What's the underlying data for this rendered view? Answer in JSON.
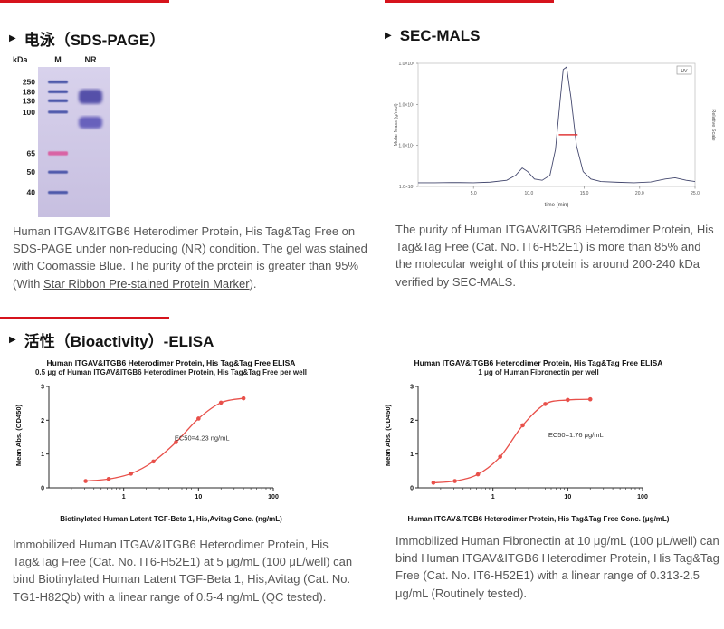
{
  "page": {
    "accent_color": "#d6131c"
  },
  "sections": {
    "sds": {
      "bullet": "▶",
      "title": "电泳（SDS-PAGE）",
      "gel": {
        "unit_label": "kDa",
        "lanes": [
          "M",
          "NR"
        ],
        "bg_top": "#d8d2ec",
        "bg_bottom": "#c7bfe0",
        "markers": [
          {
            "label": "250",
            "pos": 0.1,
            "color": "#4d58aa",
            "h": 3.2
          },
          {
            "label": "180",
            "pos": 0.165,
            "color": "#4d58aa",
            "h": 3.2
          },
          {
            "label": "130",
            "pos": 0.225,
            "color": "#4d58aa",
            "h": 3.2
          },
          {
            "label": "100",
            "pos": 0.3,
            "color": "#4d58aa",
            "h": 3.2
          },
          {
            "label": "65",
            "pos": 0.575,
            "color": "#d964a4",
            "h": 4.5
          },
          {
            "label": "50",
            "pos": 0.7,
            "color": "#4d58aa",
            "h": 3.2
          },
          {
            "label": "40",
            "pos": 0.835,
            "color": "#4d58aa",
            "h": 3.2
          }
        ],
        "sample_bands": [
          {
            "from": 0.15,
            "to": 0.245,
            "color": "#4a44a4"
          },
          {
            "from": 0.33,
            "to": 0.41,
            "color": "#5e58b8"
          }
        ]
      },
      "desc_part1": "Human ITGAV&ITGB6 Heterodimer Protein, His Tag&Tag Free on SDS-PAGE under non-reducing (NR) condition. The gel was stained with Coomassie Blue. The purity of the protein is greater than 95% (With ",
      "desc_link": "Star Ribbon Pre-stained Protein Marker",
      "desc_part2": ")."
    },
    "sec": {
      "bullet": "▶",
      "title": "SEC-MALS",
      "desc": "The purity of Human ITGAV&ITGB6 Heterodimer Protein, His Tag&Tag Free (Cat. No. IT6-H52E1) is more than 85% and the molecular weight of this protein is around 200-240 kDa verified by SEC-MALS."
    },
    "bio": {
      "bullet": "▶",
      "title": "活性（Bioactivity）-ELISA",
      "left_desc": "Immobilized Human ITGAV&ITGB6 Heterodimer Protein, His Tag&Tag Free (Cat. No. IT6-H52E1) at 5 μg/mL (100 μL/well) can bind Biotinylated Human Latent TGF-Beta 1, His,Avitag (Cat. No. TG1-H82Qb) with a linear range of 0.5-4 ng/mL (QC tested).",
      "right_desc": "Immobilized Human Fibronectin at 10 μg/mL (100 μL/well) can bind Human ITGAV&ITGB6 Heterodimer Protein, His Tag&Tag Free (Cat. No. IT6-H52E1) with a linear range of 0.313-2.5 μg/mL (Routinely tested)."
    }
  },
  "chart_data": [
    {
      "id": "sec-mals",
      "type": "line",
      "xlabel": "time (min)",
      "ylabel_left": "Molar Mass (g/mol)",
      "ylabel_right": "Relative Scale",
      "legend": "UV",
      "xlim": [
        0,
        25
      ],
      "xticks": [
        "5.0",
        "10.0",
        "15.0",
        "20.0",
        "25.0"
      ],
      "ytick_labels": [
        "1.0×10⁶",
        "1.0×10⁵",
        "1.0×10⁴",
        "1.0×10³"
      ],
      "uv_color": "#44486e",
      "mass_color": "#e03a3a",
      "mass_segment": {
        "x1": 12.7,
        "x2": 14.4,
        "y": 0.42
      },
      "uv_trace": [
        [
          0,
          0.03
        ],
        [
          1.5,
          0.03
        ],
        [
          3,
          0.032
        ],
        [
          5,
          0.03
        ],
        [
          6.5,
          0.035
        ],
        [
          8,
          0.05
        ],
        [
          8.8,
          0.09
        ],
        [
          9.4,
          0.15
        ],
        [
          9.9,
          0.12
        ],
        [
          10.5,
          0.06
        ],
        [
          11.2,
          0.05
        ],
        [
          11.9,
          0.09
        ],
        [
          12.4,
          0.3
        ],
        [
          12.8,
          0.68
        ],
        [
          13.1,
          0.95
        ],
        [
          13.4,
          0.97
        ],
        [
          13.8,
          0.72
        ],
        [
          14.3,
          0.33
        ],
        [
          14.9,
          0.12
        ],
        [
          15.6,
          0.06
        ],
        [
          16.5,
          0.04
        ],
        [
          18,
          0.034
        ],
        [
          19.5,
          0.03
        ],
        [
          21,
          0.036
        ],
        [
          22.3,
          0.06
        ],
        [
          23.2,
          0.07
        ],
        [
          24.2,
          0.05
        ],
        [
          25,
          0.04
        ]
      ]
    },
    {
      "id": "elisa-tgfb",
      "type": "scatter",
      "title_line1": "Human ITGAV&ITGB6 Heterodimer Protein, His Tag&Tag Free ELISA",
      "title_line2": "0.5 μg of Human ITGAV&ITGB6 Heterodimer Protein, His Tag&Tag Free per well",
      "xlabel": "Biotinylated Human Latent TGF-Beta 1, His,Avitag Conc. (ng/mL)",
      "ylabel": "Mean Abs. (OD450)",
      "annotation": "EC50=4.23 ng/mL",
      "annotation_pos": [
        0.56,
        0.47
      ],
      "x": [
        0.31,
        0.63,
        1.25,
        2.5,
        5,
        10,
        20,
        40
      ],
      "y": [
        0.2,
        0.26,
        0.42,
        0.78,
        1.35,
        2.05,
        2.52,
        2.65
      ],
      "xlim": [
        0.1,
        100
      ],
      "ylim": [
        0,
        3
      ],
      "xticks": [
        1,
        10,
        100
      ],
      "yticks": [
        0,
        1,
        2,
        3
      ],
      "curve_color": "#e8504a"
    },
    {
      "id": "elisa-fibronectin",
      "type": "scatter",
      "title_line1": "Human ITGAV&ITGB6 Heterodimer Protein, His Tag&Tag Free ELISA",
      "title_line2": "1 μg of Human Fibronectin per well",
      "xlabel": "Human ITGAV&ITGB6 Heterodimer Protein, His Tag&Tag Free Conc. (μg/mL)",
      "ylabel": "Mean Abs. (OD450)",
      "annotation": "EC50=1.76 μg/mL",
      "annotation_pos": [
        0.58,
        0.5
      ],
      "x": [
        0.16,
        0.31,
        0.63,
        1.25,
        2.5,
        5,
        10,
        20
      ],
      "y": [
        0.15,
        0.2,
        0.4,
        0.92,
        1.85,
        2.48,
        2.6,
        2.62
      ],
      "xlim": [
        0.1,
        100
      ],
      "ylim": [
        0,
        3
      ],
      "xticks": [
        1,
        10,
        100
      ],
      "yticks": [
        0,
        1,
        2,
        3
      ],
      "curve_color": "#e8504a"
    }
  ]
}
